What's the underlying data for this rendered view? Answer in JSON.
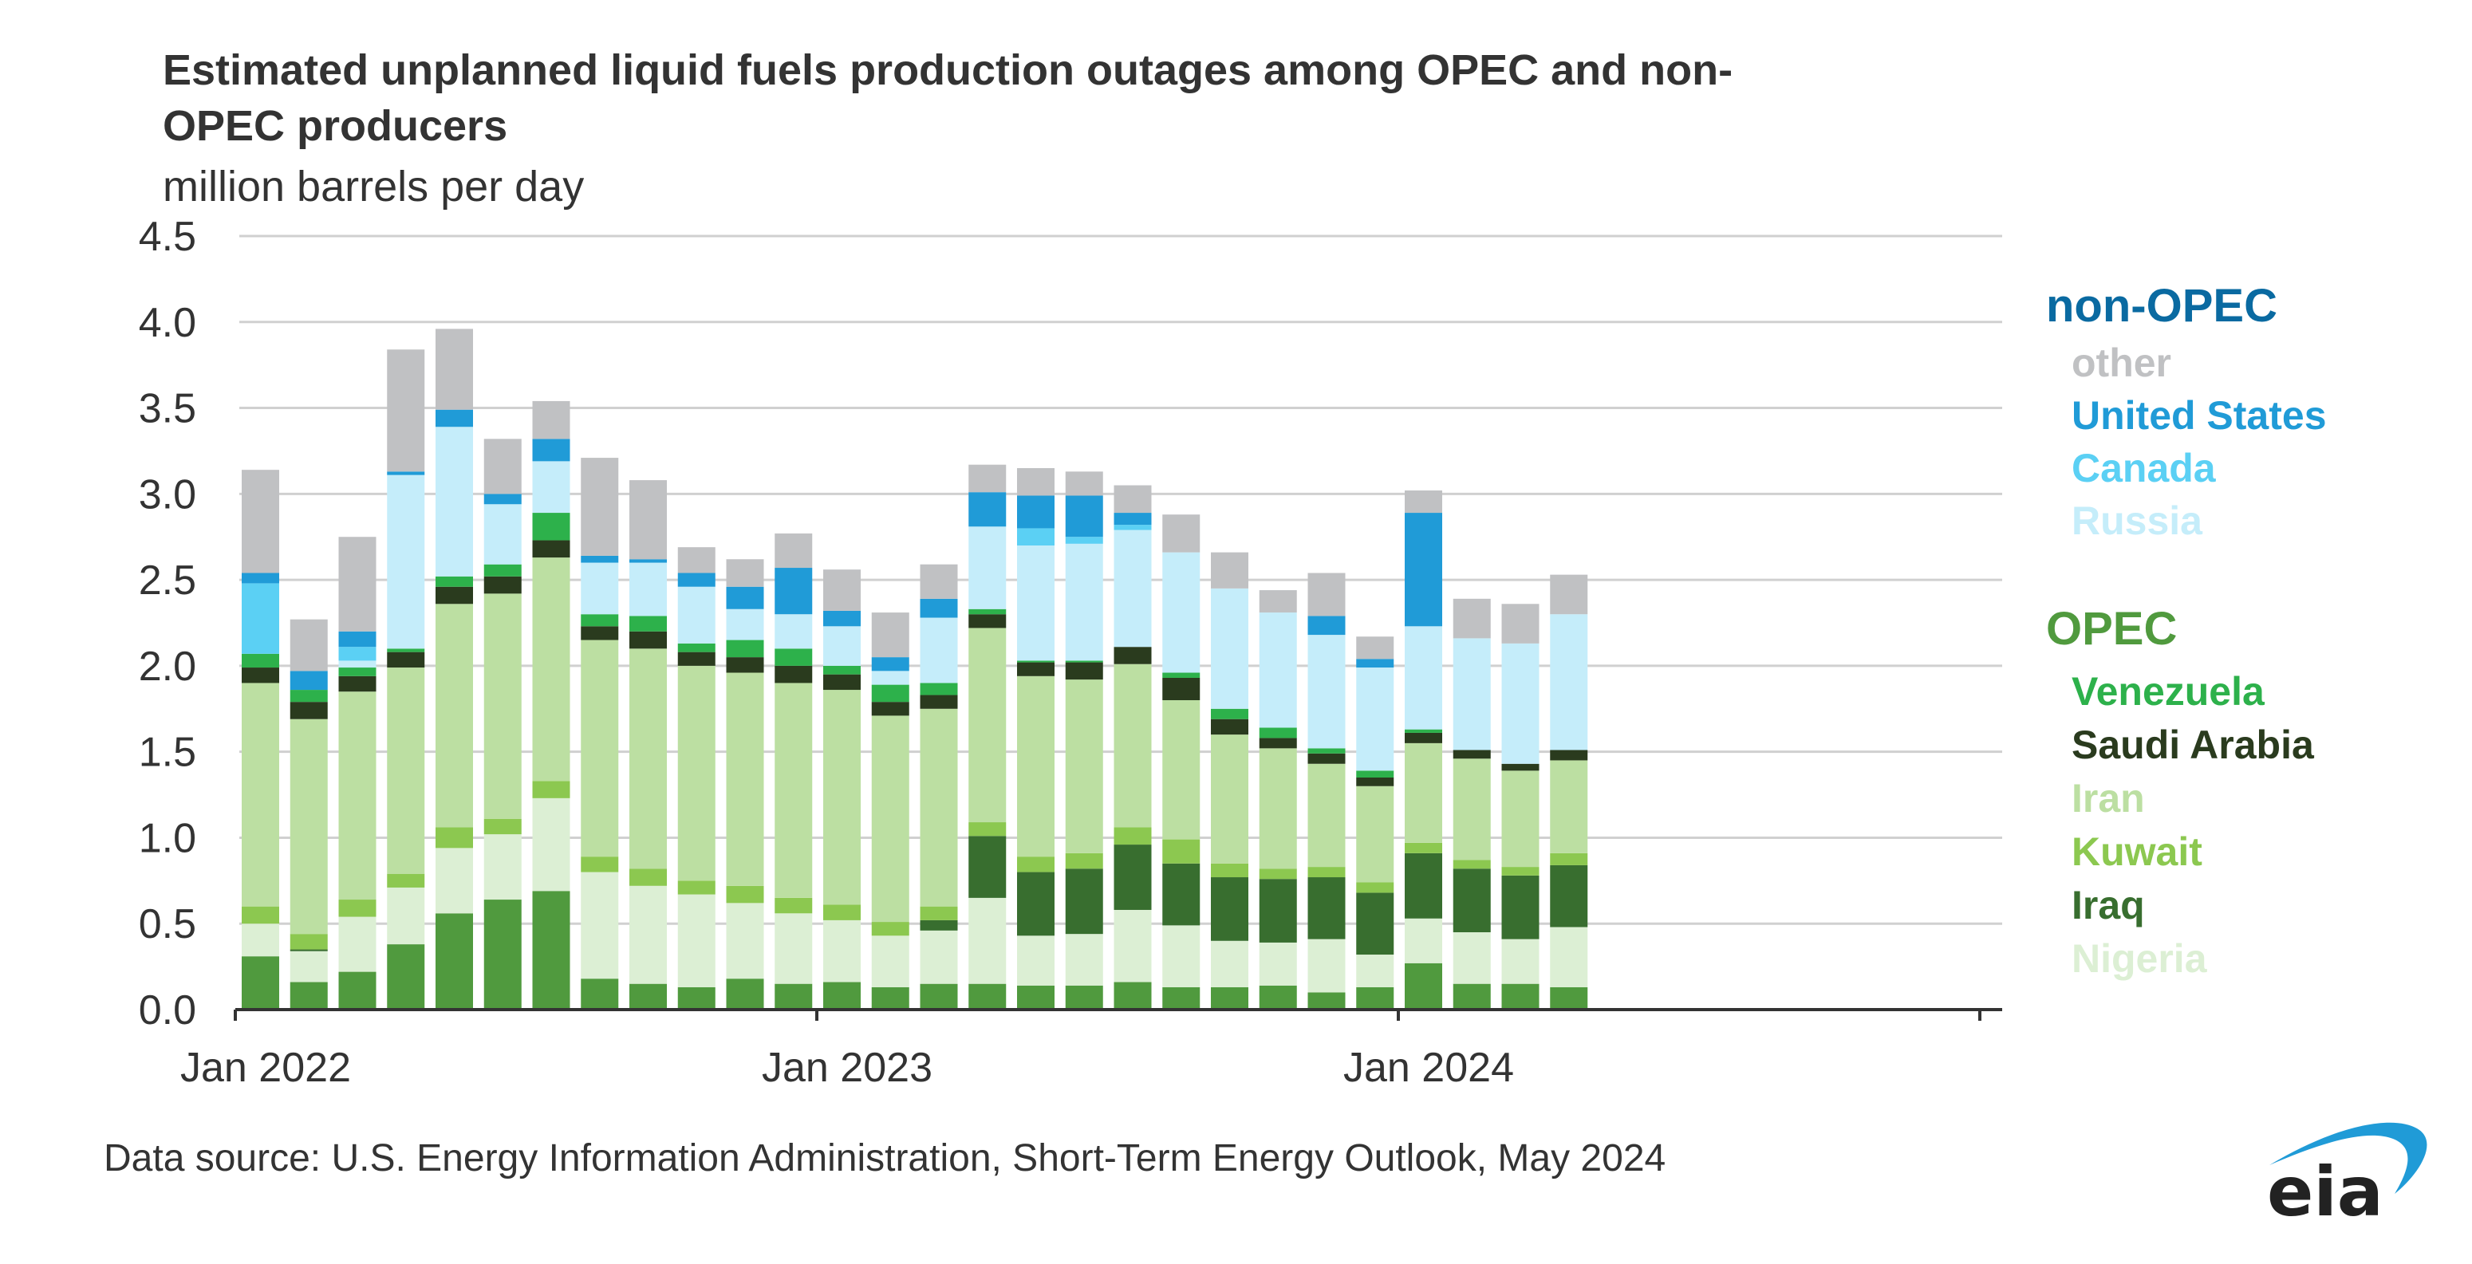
{
  "chart_data": {
    "type": "bar",
    "stacked": true,
    "title": "Estimated unplanned liquid fuels production outages among OPEC and non-OPEC producers",
    "title_lines": [
      "Estimated unplanned liquid fuels production outages among OPEC and non-",
      "OPEC producers"
    ],
    "ylabel": "million barrels per day",
    "xlabel": "",
    "ylim": [
      0,
      4.5
    ],
    "yticks": [
      "0.0",
      "0.5",
      "1.0",
      "1.5",
      "2.0",
      "2.5",
      "3.0",
      "3.5",
      "4.0",
      "4.5"
    ],
    "xticks": [
      "Jan 2022",
      "Jan 2023",
      "Jan 2024"
    ],
    "x_range_months": [
      "Jan 2022",
      "Dec 2024"
    ],
    "grid": true,
    "legend_placement": "right",
    "categories": [
      "Jan 2022",
      "Feb 2022",
      "Mar 2022",
      "Apr 2022",
      "May 2022",
      "Jun 2022",
      "Jul 2022",
      "Aug 2022",
      "Sep 2022",
      "Oct 2022",
      "Nov 2022",
      "Dec 2022",
      "Jan 2023",
      "Feb 2023",
      "Mar 2023",
      "Apr 2023",
      "May 2023",
      "Jun 2023",
      "Jul 2023",
      "Aug 2023",
      "Sep 2023",
      "Oct 2023",
      "Nov 2023",
      "Dec 2023",
      "Jan 2024",
      "Feb 2024",
      "Mar 2024",
      "Apr 2024"
    ],
    "series": [
      {
        "name": "OPEC",
        "group": "OPEC",
        "color": "#509a3e",
        "values": [
          0.31,
          0.16,
          0.22,
          0.38,
          0.56,
          0.64,
          0.69,
          0.18,
          0.15,
          0.13,
          0.18,
          0.15,
          0.16,
          0.13,
          0.15,
          0.15,
          0.14,
          0.14,
          0.16,
          0.13,
          0.13,
          0.14,
          0.1,
          0.13,
          0.27,
          0.15,
          0.15,
          0.13
        ]
      },
      {
        "name": "Nigeria",
        "group": "OPEC",
        "color": "#dcefd4",
        "values": [
          0.19,
          0.18,
          0.32,
          0.33,
          0.38,
          0.38,
          0.54,
          0.62,
          0.57,
          0.54,
          0.44,
          0.41,
          0.36,
          0.3,
          0.31,
          0.5,
          0.29,
          0.3,
          0.42,
          0.36,
          0.27,
          0.25,
          0.31,
          0.19,
          0.26,
          0.3,
          0.26,
          0.35
        ]
      },
      {
        "name": "Iraq",
        "group": "OPEC",
        "color": "#386e2f",
        "values": [
          0,
          0.01,
          0,
          0,
          0,
          0,
          0,
          0,
          0,
          0,
          0,
          0,
          0,
          0,
          0.06,
          0.36,
          0.37,
          0.38,
          0.38,
          0.36,
          0.37,
          0.37,
          0.36,
          0.36,
          0.38,
          0.37,
          0.37,
          0.36
        ]
      },
      {
        "name": "Kuwait",
        "group": "OPEC",
        "color": "#8cc850",
        "values": [
          0.1,
          0.09,
          0.1,
          0.08,
          0.12,
          0.09,
          0.1,
          0.09,
          0.1,
          0.08,
          0.1,
          0.09,
          0.09,
          0.08,
          0.08,
          0.08,
          0.09,
          0.09,
          0.1,
          0.14,
          0.08,
          0.06,
          0.06,
          0.06,
          0.06,
          0.05,
          0.05,
          0.07
        ]
      },
      {
        "name": "Iran",
        "group": "OPEC",
        "color": "#bcdfa2",
        "values": [
          1.3,
          1.25,
          1.21,
          1.2,
          1.3,
          1.31,
          1.3,
          1.26,
          1.28,
          1.25,
          1.24,
          1.25,
          1.25,
          1.2,
          1.15,
          1.13,
          1.05,
          1.01,
          0.95,
          0.81,
          0.75,
          0.7,
          0.6,
          0.56,
          0.58,
          0.59,
          0.56,
          0.54
        ]
      },
      {
        "name": "Saudi Arabia",
        "group": "OPEC",
        "color": "#2a3b1e",
        "values": [
          0.09,
          0.1,
          0.09,
          0.09,
          0.1,
          0.1,
          0.1,
          0.08,
          0.1,
          0.08,
          0.09,
          0.1,
          0.09,
          0.08,
          0.08,
          0.08,
          0.08,
          0.1,
          0.1,
          0.13,
          0.09,
          0.06,
          0.06,
          0.05,
          0.06,
          0.05,
          0.04,
          0.06
        ]
      },
      {
        "name": "Venezuela",
        "group": "OPEC",
        "color": "#2db14b",
        "values": [
          0.08,
          0.07,
          0.05,
          0.02,
          0.06,
          0.07,
          0.16,
          0.07,
          0.09,
          0.05,
          0.1,
          0.1,
          0.05,
          0.1,
          0.07,
          0.03,
          0.01,
          0.01,
          0,
          0.03,
          0.06,
          0.06,
          0.03,
          0.04,
          0.02,
          0,
          0,
          0
        ]
      },
      {
        "name": "Russia",
        "group": "non-OPEC",
        "color": "#c5edfa",
        "values": [
          0,
          0,
          0.04,
          1.01,
          0.87,
          0.35,
          0.3,
          0.3,
          0.31,
          0.33,
          0.18,
          0.2,
          0.23,
          0.08,
          0.38,
          0.48,
          0.67,
          0.68,
          0.68,
          0.7,
          0.7,
          0.67,
          0.66,
          0.6,
          0.6,
          0.65,
          0.7,
          0.79
        ]
      },
      {
        "name": "Canada",
        "group": "non-OPEC",
        "color": "#5bd0f4",
        "values": [
          0.41,
          0,
          0.08,
          0,
          0,
          0,
          0,
          0,
          0,
          0,
          0,
          0,
          0,
          0,
          0,
          0,
          0.1,
          0.04,
          0.03,
          0,
          0,
          0,
          0,
          0,
          0,
          0,
          0,
          0
        ]
      },
      {
        "name": "United States",
        "group": "non-OPEC",
        "color": "#209bd7",
        "values": [
          0.06,
          0.11,
          0.09,
          0.02,
          0.1,
          0.06,
          0.13,
          0.04,
          0.02,
          0.08,
          0.13,
          0.27,
          0.09,
          0.08,
          0.11,
          0.2,
          0.19,
          0.24,
          0.07,
          0,
          0,
          0,
          0.11,
          0.05,
          0.66,
          0,
          0,
          0
        ]
      },
      {
        "name": "other",
        "group": "non-OPEC",
        "color": "#c0c1c3",
        "values": [
          0.6,
          0.3,
          0.55,
          0.71,
          0.47,
          0.32,
          0.22,
          0.57,
          0.46,
          0.15,
          0.16,
          0.2,
          0.24,
          0.26,
          0.2,
          0.16,
          0.16,
          0.14,
          0.16,
          0.22,
          0.21,
          0.13,
          0.25,
          0.13,
          0.13,
          0.23,
          0.23,
          0.23
        ]
      }
    ],
    "legend": {
      "non_opec_header": "non-OPEC",
      "non_opec_color": "#0a6aa1",
      "non_opec_items": [
        "other",
        "United States",
        "Canada",
        "Russia"
      ],
      "opec_header": "OPEC",
      "opec_color": "#509a3e",
      "opec_items": [
        "Venezuela",
        "Saudi Arabia",
        "Iran",
        "Kuwait",
        "Iraq",
        "Nigeria"
      ]
    }
  },
  "footer": {
    "source": "Data source: U.S. Energy Information Administration, Short-Term Energy Outlook, May 2024",
    "logo_text": "eia"
  }
}
